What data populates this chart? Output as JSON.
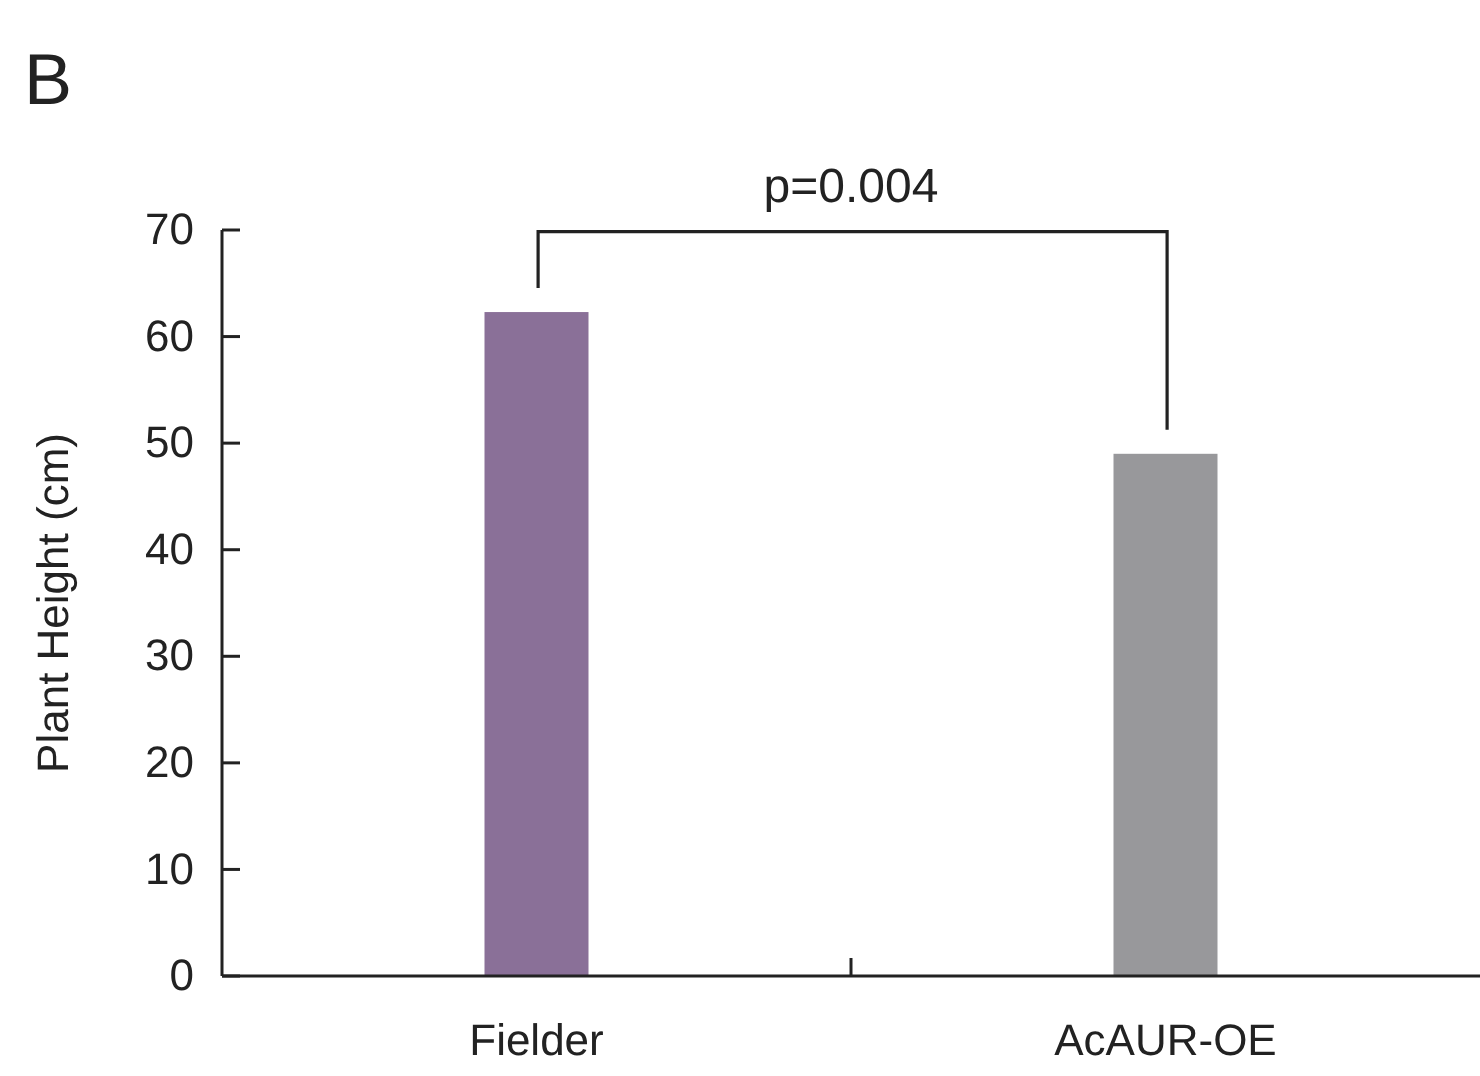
{
  "chart_data": {
    "type": "bar",
    "title": "B",
    "ylabel": "Plant Height (cm)",
    "categories": [
      "Fielder",
      "AcAUR-OE"
    ],
    "values": [
      62.3,
      49
    ],
    "colors": [
      "#8a7098",
      "#98989b"
    ],
    "ylim": [
      0,
      70
    ],
    "yticks": [
      0,
      10,
      20,
      30,
      40,
      50,
      60,
      70
    ],
    "grid": false,
    "annotations": [
      "p=0.004"
    ]
  }
}
